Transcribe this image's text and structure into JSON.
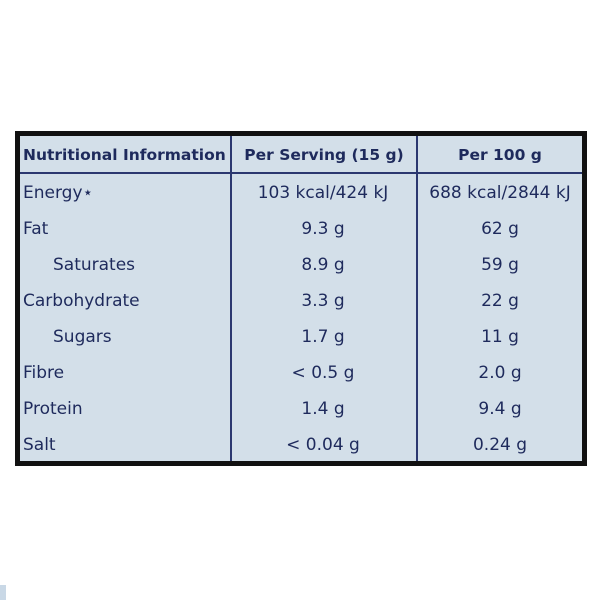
{
  "table": {
    "headers": [
      "Nutritional Information",
      "Per Serving (15 g)",
      "Per 100 g"
    ],
    "rows": [
      {
        "name": "Energy⋆",
        "per_serving": "103 kcal/424 kJ",
        "per_100g": "688 kcal/2844 kJ",
        "indent": false
      },
      {
        "name": "Fat",
        "per_serving": "9.3 g",
        "per_100g": "62 g",
        "indent": false
      },
      {
        "name": "Saturates",
        "per_serving": "8.9 g",
        "per_100g": "59 g",
        "indent": true
      },
      {
        "name": "Carbohydrate",
        "per_serving": "3.3 g",
        "per_100g": "22 g",
        "indent": false
      },
      {
        "name": "Sugars",
        "per_serving": "1.7 g",
        "per_100g": "11 g",
        "indent": true
      },
      {
        "name": "Fibre",
        "per_serving": "< 0.5 g",
        "per_100g": "2.0 g",
        "indent": false
      },
      {
        "name": "Protein",
        "per_serving": "1.4 g",
        "per_100g": "9.4 g",
        "indent": false
      },
      {
        "name": "Salt",
        "per_serving": "< 0.04 g",
        "per_100g": "0.24 g",
        "indent": false
      }
    ]
  }
}
